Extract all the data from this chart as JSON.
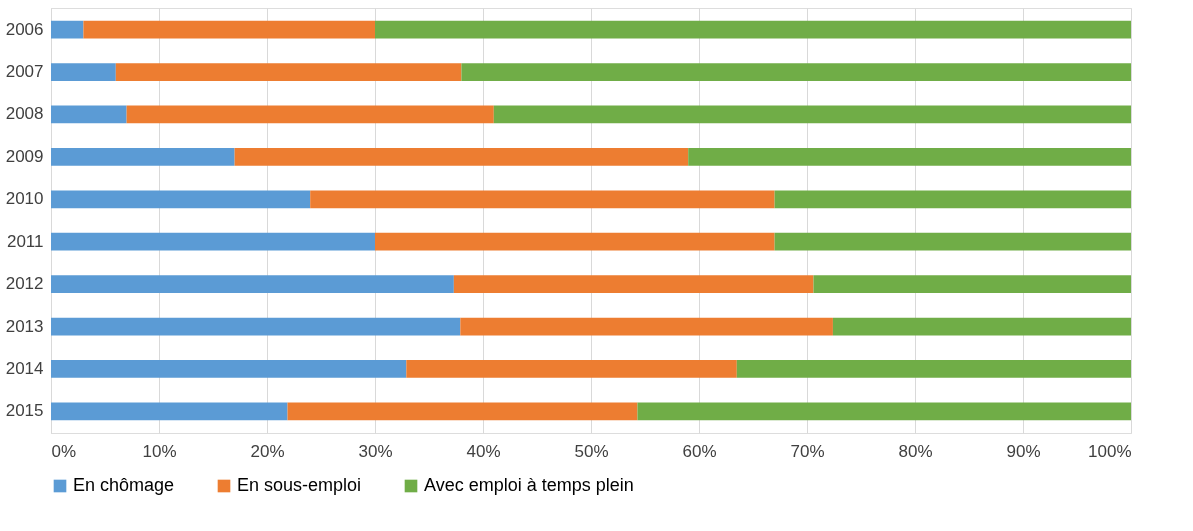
{
  "chart_data": {
    "type": "bar",
    "orientation": "horizontal",
    "stacked": true,
    "categories": [
      "2006",
      "2007",
      "2008",
      "2009",
      "2010",
      "2011",
      "2012",
      "2013",
      "2014",
      "2015"
    ],
    "series": [
      {
        "name": "En chômage",
        "color": "#5b9bd5",
        "values": [
          3,
          6,
          7,
          17,
          24,
          30,
          37.3,
          37.9,
          32.9,
          21.9
        ]
      },
      {
        "name": "En sous-emploi",
        "color": "#ed7d31",
        "values": [
          27,
          32,
          34,
          42,
          43,
          37,
          33.3,
          34.5,
          30.6,
          32.4
        ]
      },
      {
        "name": "Avec emploi à temps plein",
        "color": "#70ad47",
        "values": [
          70,
          62,
          59,
          41,
          33,
          33,
          29.4,
          27.6,
          36.5,
          45.7
        ]
      }
    ],
    "xlim": [
      0,
      100
    ],
    "xticks": [
      {
        "value": 0,
        "label": "0%"
      },
      {
        "value": 10,
        "label": "10%"
      },
      {
        "value": 20,
        "label": "20%"
      },
      {
        "value": 30,
        "label": "30%"
      },
      {
        "value": 40,
        "label": "40%"
      },
      {
        "value": 50,
        "label": "50%"
      },
      {
        "value": 60,
        "label": "60%"
      },
      {
        "value": 70,
        "label": "70%"
      },
      {
        "value": 80,
        "label": "80%"
      },
      {
        "value": 90,
        "label": "90%"
      },
      {
        "value": 100,
        "label": "100%"
      }
    ],
    "grid": "x",
    "legend": "bottom"
  }
}
